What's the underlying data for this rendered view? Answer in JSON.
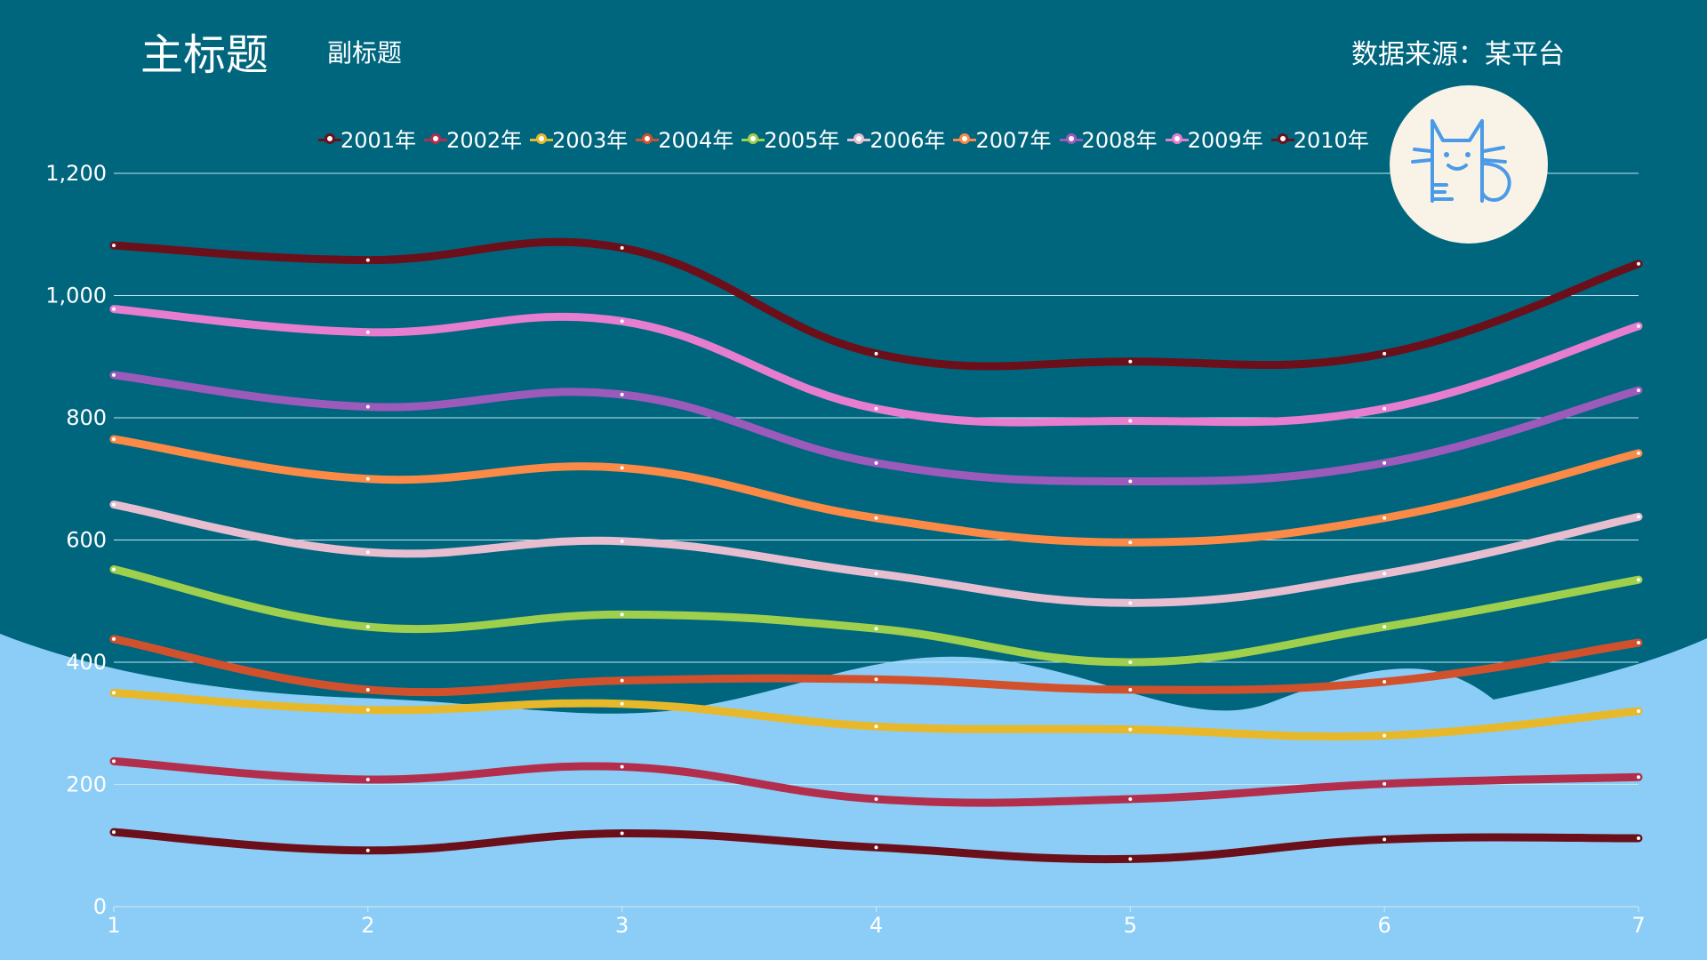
{
  "header": {
    "title": "主标题",
    "subtitle": "副标题",
    "source": "数据来源：某平台"
  },
  "logo": {
    "icon": "cat-icon"
  },
  "colors": {
    "background": "#00667e",
    "wave": "#8bcdf6",
    "grid": "#c6e6ee"
  },
  "chart_data": {
    "type": "line",
    "x": [
      1,
      2,
      3,
      4,
      5,
      6,
      7
    ],
    "ylim": [
      0,
      1200
    ],
    "yticks": [
      0,
      200,
      400,
      600,
      800,
      1000,
      1200
    ],
    "ytick_labels": [
      "0",
      "200",
      "400",
      "600",
      "800",
      "1,000",
      "1,200"
    ],
    "grid": true,
    "legend_position": "top",
    "smooth": true,
    "series": [
      {
        "name": "2001年",
        "color": "#6b0f1a",
        "values": [
          122,
          92,
          120,
          97,
          78,
          110,
          112
        ]
      },
      {
        "name": "2002年",
        "color": "#b22e4c",
        "values": [
          238,
          208,
          229,
          176,
          176,
          201,
          212
        ]
      },
      {
        "name": "2003年",
        "color": "#e8b82b",
        "values": [
          350,
          322,
          332,
          295,
          290,
          280,
          320
        ]
      },
      {
        "name": "2004年",
        "color": "#d2512d",
        "values": [
          438,
          355,
          370,
          372,
          355,
          368,
          432
        ]
      },
      {
        "name": "2005年",
        "color": "#9fd04d",
        "values": [
          552,
          458,
          478,
          455,
          400,
          458,
          535
        ]
      },
      {
        "name": "2006年",
        "color": "#e7bdd0",
        "values": [
          658,
          580,
          598,
          545,
          497,
          545,
          638
        ]
      },
      {
        "name": "2007年",
        "color": "#fb8a47",
        "values": [
          765,
          700,
          718,
          636,
          596,
          636,
          742
        ]
      },
      {
        "name": "2008年",
        "color": "#9c5abb",
        "values": [
          870,
          818,
          838,
          726,
          696,
          726,
          845
        ]
      },
      {
        "name": "2009年",
        "color": "#e67dcf",
        "values": [
          978,
          940,
          958,
          815,
          795,
          815,
          950
        ]
      },
      {
        "name": "2010年",
        "color": "#6b0f1a",
        "values": [
          1082,
          1058,
          1078,
          905,
          892,
          905,
          1052
        ]
      }
    ]
  }
}
